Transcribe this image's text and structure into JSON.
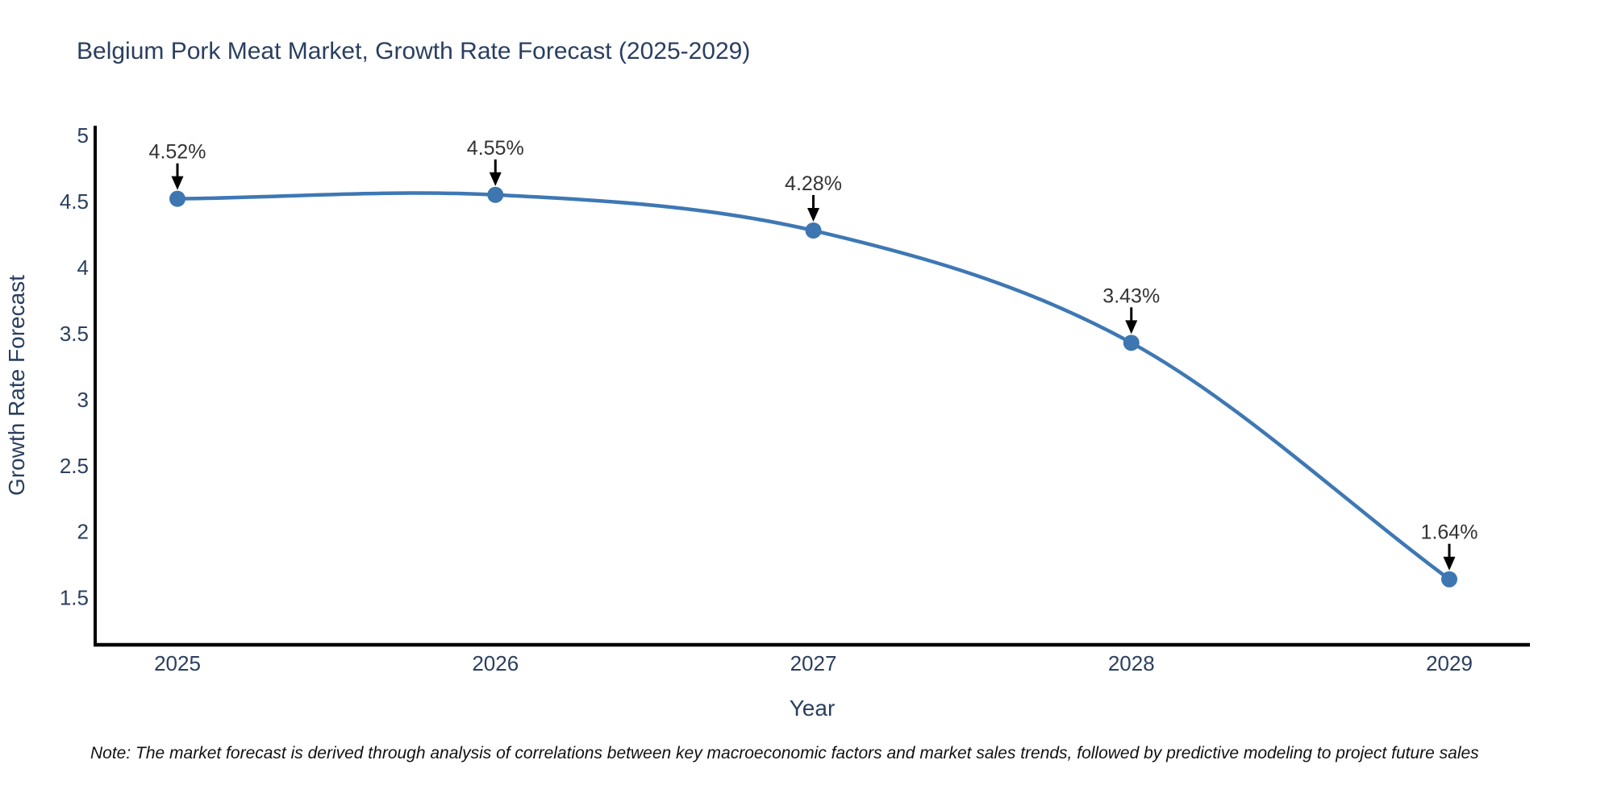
{
  "title": "Belgium Pork Meat Market, Growth Rate Forecast (2025-2029)",
  "note": "Note: The market forecast is derived through analysis of correlations between key macroeconomic factors and market sales trends, followed by predictive modeling to project future sales",
  "colors": {
    "background": "#ffffff",
    "title_text": "#2a3f5f",
    "tick_text": "#2a3f5f",
    "annotation_text": "#333333",
    "note_text": "#111111",
    "line": "#3e78b4",
    "marker": "#3d76b0",
    "axis_line": "#000000",
    "arrow": "#000000"
  },
  "chart_data": {
    "type": "line",
    "title": "Belgium Pork Meat Market, Growth Rate Forecast (2025-2029)",
    "xlabel": "Year",
    "ylabel": "Growth Rate Forecast",
    "categories": [
      "2025",
      "2026",
      "2027",
      "2028",
      "2029"
    ],
    "values": [
      4.52,
      4.55,
      4.28,
      3.43,
      1.64
    ],
    "point_labels": [
      "4.52%",
      "4.55%",
      "4.28%",
      "3.43%",
      "1.64%"
    ],
    "yticks": [
      1.5,
      2,
      2.5,
      3,
      3.5,
      4,
      4.5,
      5
    ],
    "ylim": [
      1.14,
      5.06
    ],
    "line_shape": "spline",
    "grid": false,
    "legend": false,
    "annotations": "black arrows pointing down from each value label to its marker"
  }
}
